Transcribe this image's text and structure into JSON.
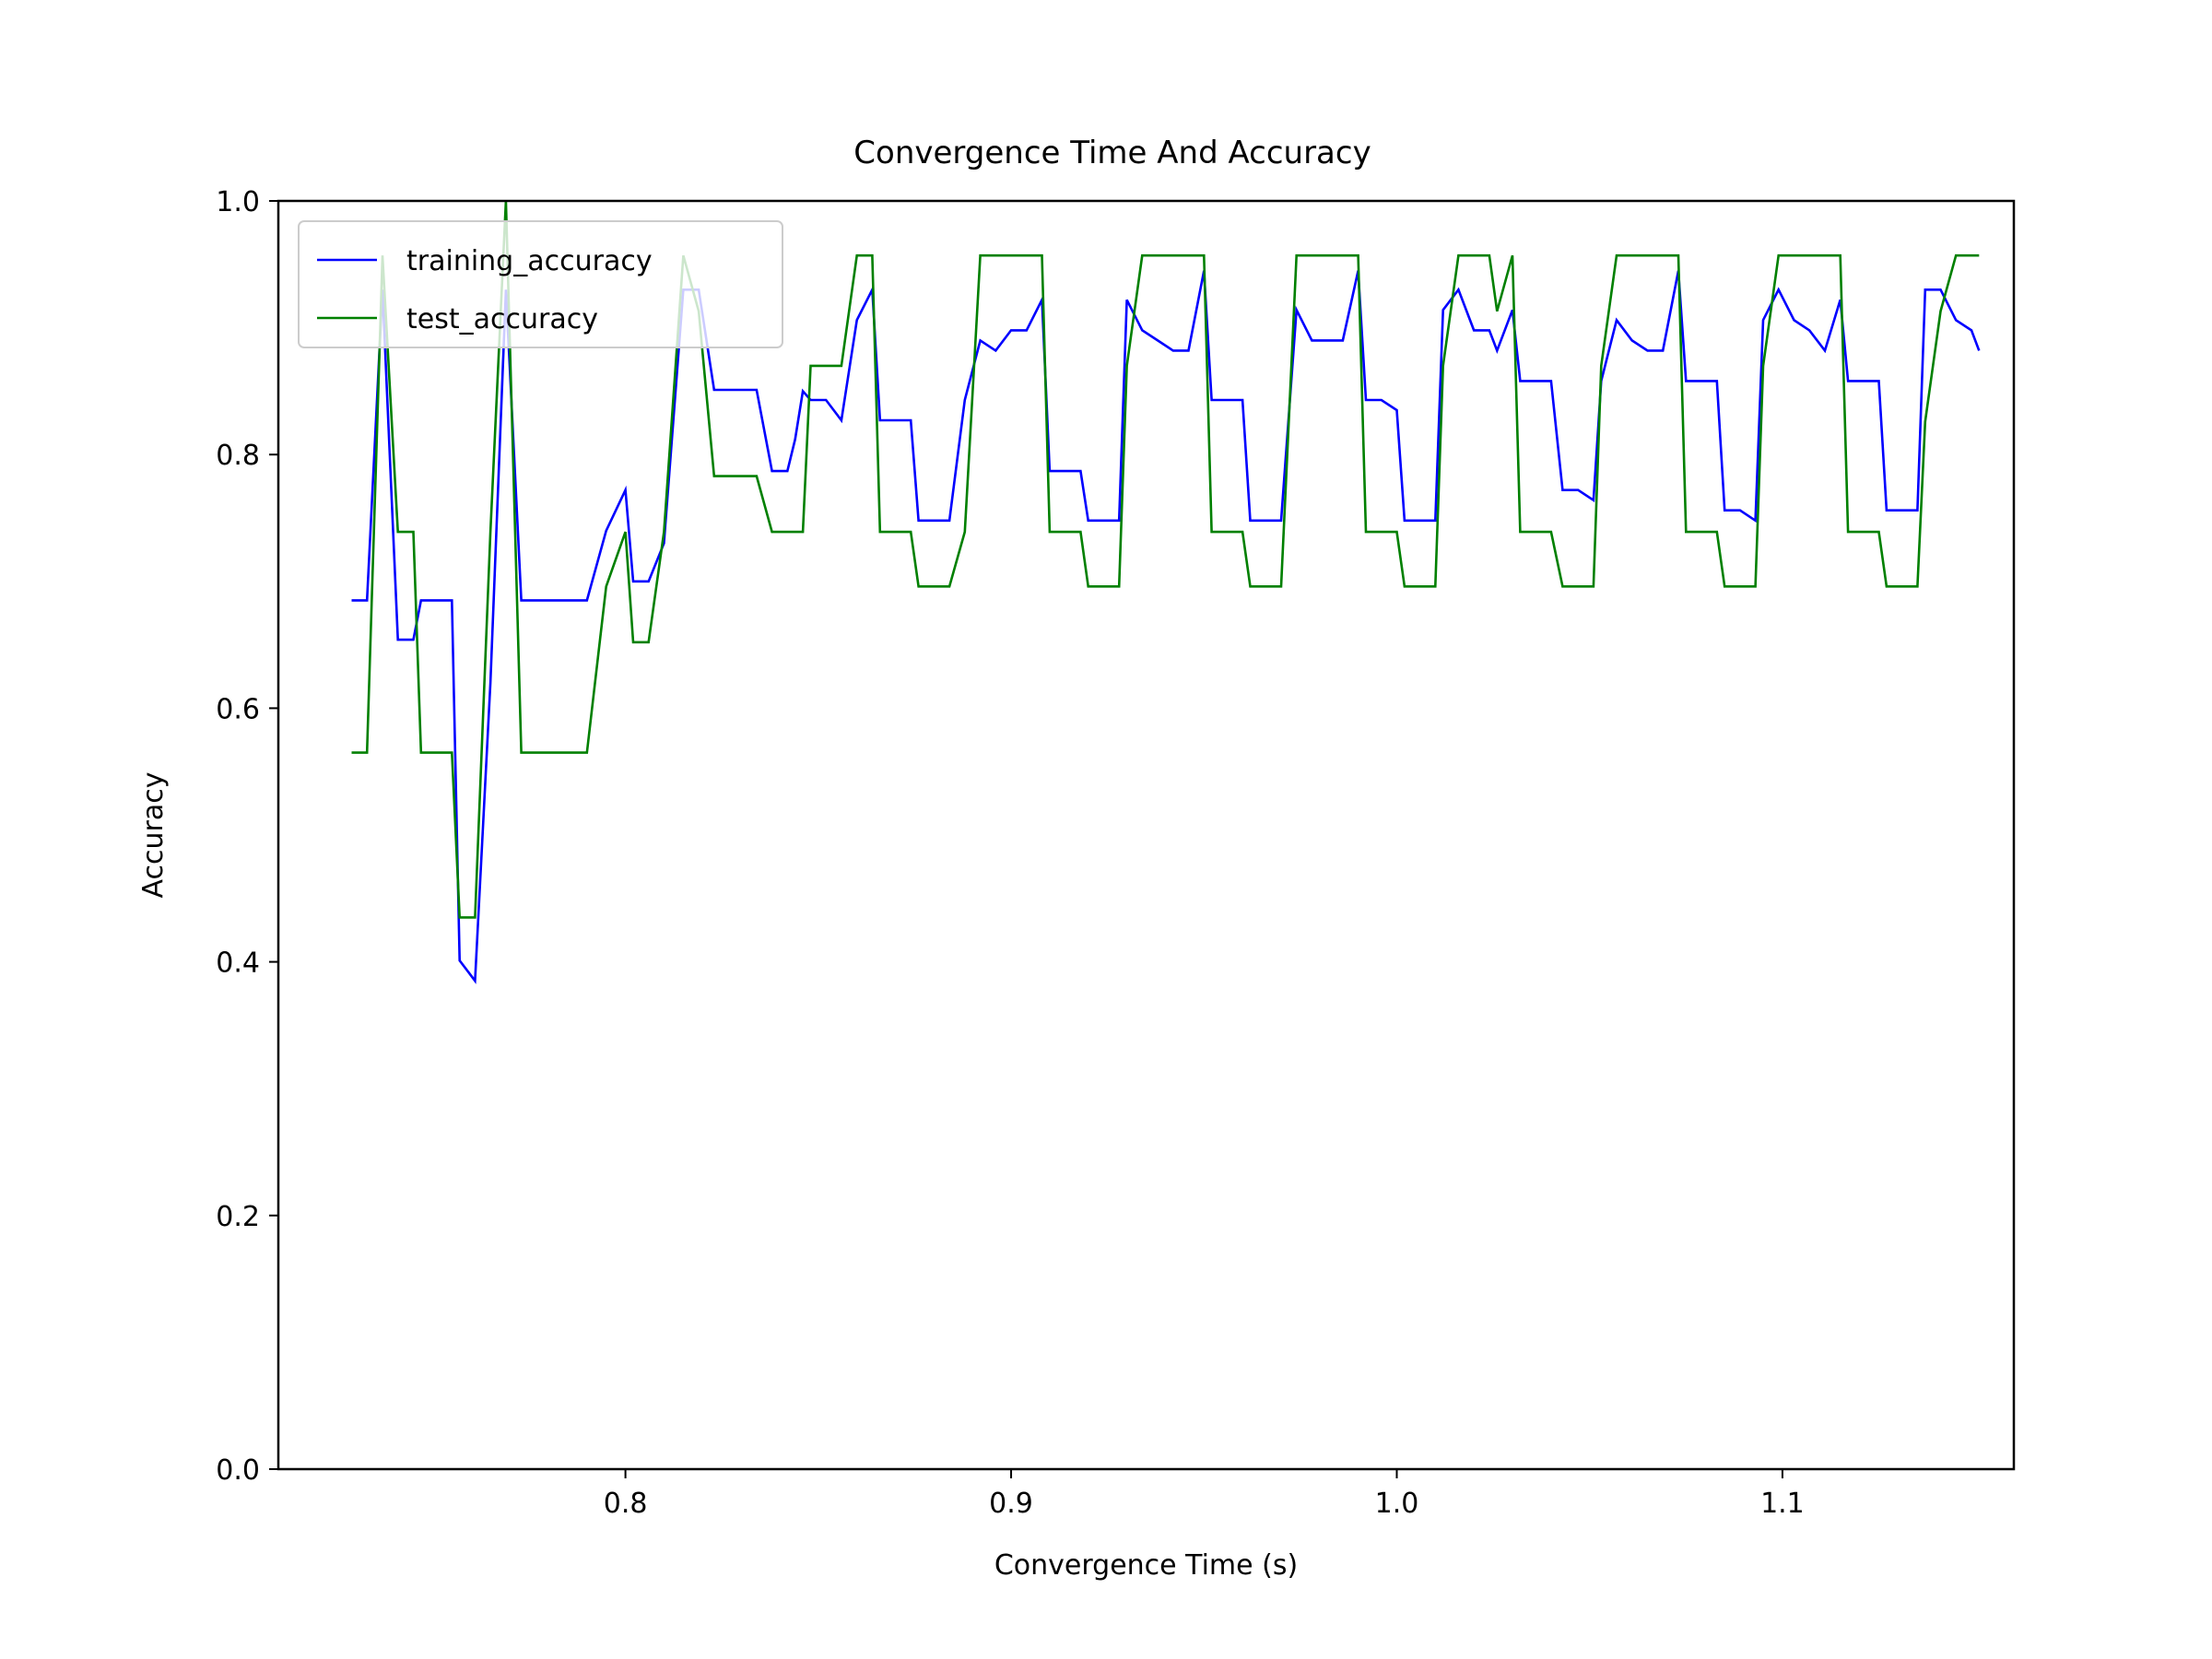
{
  "chart_data": {
    "type": "line",
    "title": "Convergence Time And Accuracy",
    "xlabel": "Convergence Time (s)",
    "ylabel": "Accuracy",
    "xlim": [
      0.71,
      1.16
    ],
    "ylim": [
      0.0,
      1.0
    ],
    "xticks": [
      {
        "value": 0.8,
        "label": "0.8"
      },
      {
        "value": 0.9,
        "label": "0.9"
      },
      {
        "value": 1.0,
        "label": "1.0"
      },
      {
        "value": 1.1,
        "label": "1.1"
      }
    ],
    "yticks": [
      {
        "value": 0.0,
        "label": "0.0"
      },
      {
        "value": 0.2,
        "label": "0.2"
      },
      {
        "value": 0.4,
        "label": "0.4"
      },
      {
        "value": 0.6,
        "label": "0.6"
      },
      {
        "value": 0.8,
        "label": "0.8"
      },
      {
        "value": 1.0,
        "label": "1.0"
      }
    ],
    "grid": false,
    "legend": "upper-left",
    "series": [
      {
        "name": "training_accuracy",
        "color": "#0000ff",
        "points": [
          [
            0.729,
            0.685
          ],
          [
            0.733,
            0.685
          ],
          [
            0.737,
            0.93
          ],
          [
            0.741,
            0.654
          ],
          [
            0.745,
            0.654
          ],
          [
            0.747,
            0.685
          ],
          [
            0.751,
            0.685
          ],
          [
            0.755,
            0.685
          ],
          [
            0.757,
            0.401
          ],
          [
            0.761,
            0.385
          ],
          [
            0.765,
            0.62
          ],
          [
            0.769,
            0.93
          ],
          [
            0.773,
            0.685
          ],
          [
            0.777,
            0.685
          ],
          [
            0.781,
            0.685
          ],
          [
            0.785,
            0.685
          ],
          [
            0.79,
            0.685
          ],
          [
            0.795,
            0.74
          ],
          [
            0.8,
            0.772
          ],
          [
            0.802,
            0.7
          ],
          [
            0.806,
            0.7
          ],
          [
            0.81,
            0.73
          ],
          [
            0.815,
            0.93
          ],
          [
            0.819,
            0.93
          ],
          [
            0.823,
            0.851
          ],
          [
            0.827,
            0.851
          ],
          [
            0.831,
            0.851
          ],
          [
            0.834,
            0.851
          ],
          [
            0.838,
            0.787
          ],
          [
            0.842,
            0.787
          ],
          [
            0.844,
            0.812
          ],
          [
            0.846,
            0.85
          ],
          [
            0.848,
            0.843
          ],
          [
            0.852,
            0.843
          ],
          [
            0.856,
            0.827
          ],
          [
            0.86,
            0.906
          ],
          [
            0.864,
            0.93
          ],
          [
            0.866,
            0.827
          ],
          [
            0.87,
            0.827
          ],
          [
            0.874,
            0.827
          ],
          [
            0.876,
            0.748
          ],
          [
            0.88,
            0.748
          ],
          [
            0.884,
            0.748
          ],
          [
            0.888,
            0.843
          ],
          [
            0.892,
            0.89
          ],
          [
            0.896,
            0.882
          ],
          [
            0.9,
            0.898
          ],
          [
            0.904,
            0.898
          ],
          [
            0.908,
            0.922
          ],
          [
            0.91,
            0.787
          ],
          [
            0.914,
            0.787
          ],
          [
            0.918,
            0.787
          ],
          [
            0.92,
            0.748
          ],
          [
            0.924,
            0.748
          ],
          [
            0.928,
            0.748
          ],
          [
            0.93,
            0.922
          ],
          [
            0.934,
            0.898
          ],
          [
            0.938,
            0.89
          ],
          [
            0.942,
            0.882
          ],
          [
            0.946,
            0.882
          ],
          [
            0.95,
            0.945
          ],
          [
            0.952,
            0.843
          ],
          [
            0.956,
            0.843
          ],
          [
            0.96,
            0.843
          ],
          [
            0.962,
            0.748
          ],
          [
            0.966,
            0.748
          ],
          [
            0.97,
            0.748
          ],
          [
            0.974,
            0.914
          ],
          [
            0.978,
            0.89
          ],
          [
            0.982,
            0.89
          ],
          [
            0.986,
            0.89
          ],
          [
            0.99,
            0.945
          ],
          [
            0.992,
            0.843
          ],
          [
            0.996,
            0.843
          ],
          [
            1.0,
            0.835
          ],
          [
            1.002,
            0.748
          ],
          [
            1.006,
            0.748
          ],
          [
            1.01,
            0.748
          ],
          [
            1.012,
            0.914
          ],
          [
            1.016,
            0.93
          ],
          [
            1.02,
            0.898
          ],
          [
            1.024,
            0.898
          ],
          [
            1.026,
            0.882
          ],
          [
            1.03,
            0.914
          ],
          [
            1.032,
            0.858
          ],
          [
            1.036,
            0.858
          ],
          [
            1.04,
            0.858
          ],
          [
            1.043,
            0.772
          ],
          [
            1.047,
            0.772
          ],
          [
            1.051,
            0.764
          ],
          [
            1.053,
            0.858
          ],
          [
            1.057,
            0.906
          ],
          [
            1.061,
            0.89
          ],
          [
            1.065,
            0.882
          ],
          [
            1.069,
            0.882
          ],
          [
            1.073,
            0.945
          ],
          [
            1.075,
            0.858
          ],
          [
            1.079,
            0.858
          ],
          [
            1.083,
            0.858
          ],
          [
            1.085,
            0.756
          ],
          [
            1.089,
            0.756
          ],
          [
            1.093,
            0.748
          ],
          [
            1.095,
            0.906
          ],
          [
            1.099,
            0.93
          ],
          [
            1.103,
            0.906
          ],
          [
            1.107,
            0.898
          ],
          [
            1.111,
            0.882
          ],
          [
            1.115,
            0.922
          ],
          [
            1.117,
            0.858
          ],
          [
            1.121,
            0.858
          ],
          [
            1.125,
            0.858
          ],
          [
            1.127,
            0.756
          ],
          [
            1.131,
            0.756
          ],
          [
            1.135,
            0.756
          ],
          [
            1.137,
            0.93
          ],
          [
            1.141,
            0.93
          ],
          [
            1.145,
            0.906
          ],
          [
            1.149,
            0.898
          ],
          [
            1.151,
            0.882
          ]
        ]
      },
      {
        "name": "test_accuracy",
        "color": "#008000",
        "points": [
          [
            0.729,
            0.565
          ],
          [
            0.733,
            0.565
          ],
          [
            0.737,
            0.957
          ],
          [
            0.741,
            0.739
          ],
          [
            0.745,
            0.739
          ],
          [
            0.747,
            0.565
          ],
          [
            0.751,
            0.565
          ],
          [
            0.755,
            0.565
          ],
          [
            0.757,
            0.435
          ],
          [
            0.761,
            0.435
          ],
          [
            0.765,
            0.739
          ],
          [
            0.769,
            1.0
          ],
          [
            0.773,
            0.565
          ],
          [
            0.777,
            0.565
          ],
          [
            0.781,
            0.565
          ],
          [
            0.785,
            0.565
          ],
          [
            0.79,
            0.565
          ],
          [
            0.795,
            0.696
          ],
          [
            0.8,
            0.739
          ],
          [
            0.802,
            0.652
          ],
          [
            0.806,
            0.652
          ],
          [
            0.81,
            0.739
          ],
          [
            0.815,
            0.957
          ],
          [
            0.819,
            0.913
          ],
          [
            0.823,
            0.783
          ],
          [
            0.827,
            0.783
          ],
          [
            0.831,
            0.783
          ],
          [
            0.834,
            0.783
          ],
          [
            0.838,
            0.739
          ],
          [
            0.842,
            0.739
          ],
          [
            0.844,
            0.739
          ],
          [
            0.846,
            0.739
          ],
          [
            0.848,
            0.87
          ],
          [
            0.852,
            0.87
          ],
          [
            0.856,
            0.87
          ],
          [
            0.86,
            0.957
          ],
          [
            0.864,
            0.957
          ],
          [
            0.866,
            0.739
          ],
          [
            0.87,
            0.739
          ],
          [
            0.874,
            0.739
          ],
          [
            0.876,
            0.696
          ],
          [
            0.88,
            0.696
          ],
          [
            0.884,
            0.696
          ],
          [
            0.888,
            0.739
          ],
          [
            0.892,
            0.957
          ],
          [
            0.896,
            0.957
          ],
          [
            0.9,
            0.957
          ],
          [
            0.904,
            0.957
          ],
          [
            0.908,
            0.957
          ],
          [
            0.91,
            0.739
          ],
          [
            0.914,
            0.739
          ],
          [
            0.918,
            0.739
          ],
          [
            0.92,
            0.696
          ],
          [
            0.924,
            0.696
          ],
          [
            0.928,
            0.696
          ],
          [
            0.93,
            0.87
          ],
          [
            0.934,
            0.957
          ],
          [
            0.938,
            0.957
          ],
          [
            0.942,
            0.957
          ],
          [
            0.946,
            0.957
          ],
          [
            0.95,
            0.957
          ],
          [
            0.952,
            0.739
          ],
          [
            0.956,
            0.739
          ],
          [
            0.96,
            0.739
          ],
          [
            0.962,
            0.696
          ],
          [
            0.966,
            0.696
          ],
          [
            0.97,
            0.696
          ],
          [
            0.974,
            0.957
          ],
          [
            0.978,
            0.957
          ],
          [
            0.982,
            0.957
          ],
          [
            0.986,
            0.957
          ],
          [
            0.99,
            0.957
          ],
          [
            0.992,
            0.739
          ],
          [
            0.996,
            0.739
          ],
          [
            1.0,
            0.739
          ],
          [
            1.002,
            0.696
          ],
          [
            1.006,
            0.696
          ],
          [
            1.01,
            0.696
          ],
          [
            1.012,
            0.87
          ],
          [
            1.016,
            0.957
          ],
          [
            1.02,
            0.957
          ],
          [
            1.024,
            0.957
          ],
          [
            1.026,
            0.913
          ],
          [
            1.03,
            0.957
          ],
          [
            1.032,
            0.739
          ],
          [
            1.036,
            0.739
          ],
          [
            1.04,
            0.739
          ],
          [
            1.043,
            0.696
          ],
          [
            1.047,
            0.696
          ],
          [
            1.051,
            0.696
          ],
          [
            1.053,
            0.87
          ],
          [
            1.057,
            0.957
          ],
          [
            1.061,
            0.957
          ],
          [
            1.065,
            0.957
          ],
          [
            1.069,
            0.957
          ],
          [
            1.073,
            0.957
          ],
          [
            1.075,
            0.739
          ],
          [
            1.079,
            0.739
          ],
          [
            1.083,
            0.739
          ],
          [
            1.085,
            0.696
          ],
          [
            1.089,
            0.696
          ],
          [
            1.093,
            0.696
          ],
          [
            1.095,
            0.87
          ],
          [
            1.099,
            0.957
          ],
          [
            1.103,
            0.957
          ],
          [
            1.107,
            0.957
          ],
          [
            1.111,
            0.957
          ],
          [
            1.115,
            0.957
          ],
          [
            1.117,
            0.739
          ],
          [
            1.121,
            0.739
          ],
          [
            1.125,
            0.739
          ],
          [
            1.127,
            0.696
          ],
          [
            1.131,
            0.696
          ],
          [
            1.135,
            0.696
          ],
          [
            1.137,
            0.826
          ],
          [
            1.141,
            0.913
          ],
          [
            1.145,
            0.957
          ],
          [
            1.149,
            0.957
          ],
          [
            1.151,
            0.957
          ]
        ]
      }
    ]
  }
}
